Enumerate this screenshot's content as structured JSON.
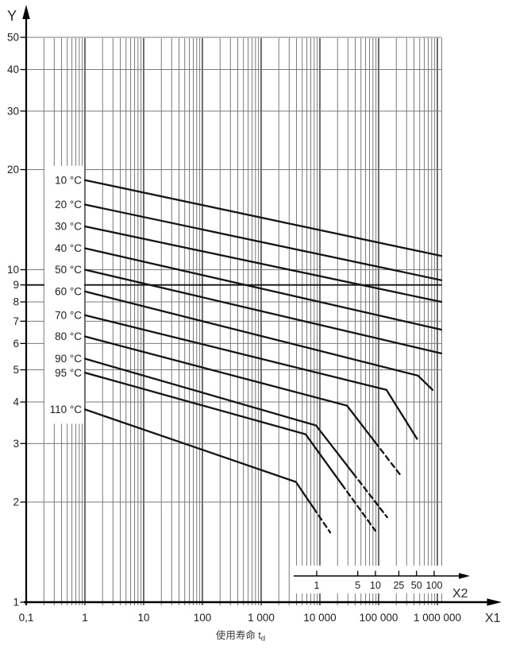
{
  "colors": {
    "background": "#ffffff",
    "curve": "#141414",
    "grid_minor": "#7a7a7a",
    "grid_major": "#303030",
    "grid_emphasis": "#111111",
    "axis": "#000000",
    "text": "#1d1d1d"
  },
  "caption": {
    "main": "使用寿命 t",
    "sub": "d"
  },
  "chart_data": {
    "type": "line",
    "x_scale": "log",
    "y_scale": "log",
    "x_range": [
      0.1,
      1170000
    ],
    "y_range": [
      1,
      50
    ],
    "grid": "on",
    "x_axis_label": "X1",
    "y_axis_label": "Y",
    "x2_axis_label": "X2",
    "x_ticks": {
      "values": [
        0.1,
        1,
        10,
        100,
        1000,
        10000,
        100000,
        1000000
      ],
      "labels": [
        "0,1",
        "1",
        "10",
        "100",
        "1 000",
        "10 000",
        "100 000",
        "1 000 000"
      ]
    },
    "y_ticks": {
      "values": [
        1,
        2,
        3,
        4,
        5,
        6,
        7,
        8,
        9,
        10,
        20,
        30,
        40,
        50
      ],
      "labels": [
        "1",
        "2",
        "3",
        "4",
        "5",
        "6",
        "7",
        "8",
        "9",
        "10",
        "20",
        "30",
        "40",
        "50"
      ]
    },
    "x2_ticks": {
      "values": [
        1,
        5,
        10,
        25,
        50,
        100
      ],
      "labels": [
        "1",
        "5",
        "10",
        "25",
        "50",
        "100"
      ]
    },
    "legend_position": "labels-on-curves-left",
    "series": [
      {
        "name": "10 °C",
        "points": [
          [
            1,
            18.6
          ],
          [
            1170000,
            11.0
          ]
        ],
        "dashed_tail": false
      },
      {
        "name": "20 °C",
        "points": [
          [
            1,
            15.7
          ],
          [
            1170000,
            9.3
          ]
        ],
        "dashed_tail": false
      },
      {
        "name": "30 °C",
        "points": [
          [
            1,
            13.5
          ],
          [
            1170000,
            8.0
          ]
        ],
        "dashed_tail": false
      },
      {
        "name": "40 °C",
        "points": [
          [
            1,
            11.6
          ],
          [
            1170000,
            6.6
          ]
        ],
        "dashed_tail": false
      },
      {
        "name": "50 °C",
        "points": [
          [
            1,
            10.0
          ],
          [
            1170000,
            5.6
          ]
        ],
        "dashed_tail": false
      },
      {
        "name": "60 °C",
        "points": [
          [
            1,
            8.6
          ],
          [
            470000,
            4.8
          ],
          [
            830000,
            4.35
          ]
        ],
        "dashed_tail": false
      },
      {
        "name": "70 °C",
        "points": [
          [
            1,
            7.3
          ],
          [
            136000,
            4.35
          ],
          [
            450000,
            3.1
          ]
        ],
        "dashed_tail": false
      },
      {
        "name": "80 °C",
        "points": [
          [
            1,
            6.3
          ],
          [
            29000,
            3.9
          ],
          [
            240000,
            2.4
          ]
        ],
        "dashed_tail": true
      },
      {
        "name": "90 °C",
        "points": [
          [
            1,
            5.4
          ],
          [
            8600,
            3.4
          ],
          [
            140000,
            1.8
          ]
        ],
        "dashed_tail": true
      },
      {
        "name": "95 °C",
        "points": [
          [
            1,
            4.9
          ],
          [
            5700,
            3.2
          ],
          [
            88000,
            1.64
          ]
        ],
        "dashed_tail": true
      },
      {
        "name": "110 °C",
        "points": [
          [
            1,
            3.8
          ],
          [
            3900,
            2.3
          ],
          [
            15000,
            1.62
          ]
        ],
        "dashed_tail": true
      }
    ]
  }
}
